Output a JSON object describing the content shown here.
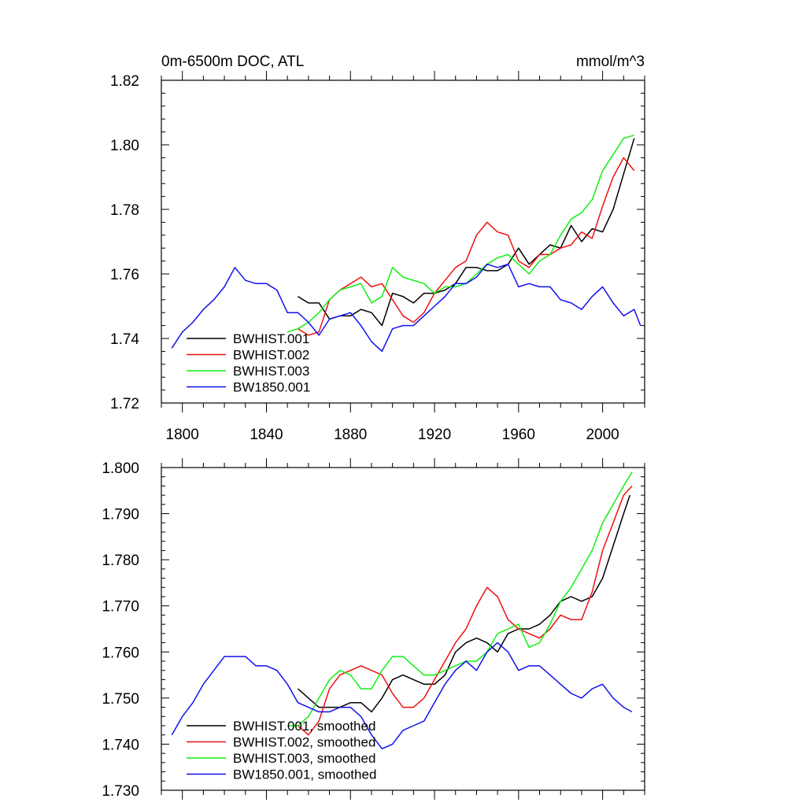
{
  "colors": {
    "BWHIST.001": "#000000",
    "BWHIST.002": "#ee1111",
    "BWHIST.003": "#11ee11",
    "BW1850.001": "#1111ee"
  },
  "chart_data": [
    {
      "type": "line",
      "title": "0m-6500m DOC, ATL",
      "units": "mmol/m^3",
      "xlim": [
        1790,
        2020
      ],
      "ylim": [
        1.72,
        1.82
      ],
      "x_ticks": [
        1800,
        1840,
        1880,
        1920,
        1960,
        2000
      ],
      "y_ticks": [
        1.72,
        1.74,
        1.76,
        1.78,
        1.8,
        1.82
      ],
      "y_tick_labels": [
        "1.72",
        "1.74",
        "1.76",
        "1.78",
        "1.80",
        "1.82"
      ],
      "legend": {
        "placement": "lower-left",
        "entries": [
          "BWHIST.001",
          "BWHIST.002",
          "BWHIST.003",
          "BW1850.001"
        ]
      },
      "series": [
        {
          "name": "BWHIST.001",
          "color_key": "BWHIST.001",
          "x": [
            1855,
            1860,
            1865,
            1870,
            1875,
            1880,
            1885,
            1890,
            1895,
            1900,
            1905,
            1910,
            1915,
            1920,
            1925,
            1930,
            1935,
            1940,
            1945,
            1950,
            1955,
            1960,
            1965,
            1970,
            1975,
            1980,
            1985,
            1990,
            1995,
            2000,
            2005,
            2010,
            2015
          ],
          "y": [
            1.753,
            1.751,
            1.751,
            1.746,
            1.747,
            1.747,
            1.749,
            1.748,
            1.744,
            1.754,
            1.753,
            1.751,
            1.754,
            1.754,
            1.755,
            1.757,
            1.762,
            1.762,
            1.761,
            1.761,
            1.763,
            1.768,
            1.763,
            1.766,
            1.769,
            1.768,
            1.775,
            1.77,
            1.774,
            1.773,
            1.78,
            1.791,
            1.802
          ]
        },
        {
          "name": "BWHIST.002",
          "color_key": "BWHIST.002",
          "x": [
            1855,
            1860,
            1865,
            1870,
            1875,
            1880,
            1885,
            1890,
            1895,
            1900,
            1905,
            1910,
            1915,
            1920,
            1925,
            1930,
            1935,
            1940,
            1945,
            1950,
            1955,
            1960,
            1965,
            1970,
            1975,
            1980,
            1985,
            1990,
            1995,
            2000,
            2005,
            2010,
            2015
          ],
          "y": [
            1.743,
            1.741,
            1.742,
            1.752,
            1.755,
            1.757,
            1.759,
            1.756,
            1.757,
            1.752,
            1.747,
            1.745,
            1.748,
            1.754,
            1.758,
            1.762,
            1.764,
            1.772,
            1.776,
            1.773,
            1.772,
            1.764,
            1.762,
            1.766,
            1.766,
            1.768,
            1.769,
            1.773,
            1.771,
            1.781,
            1.79,
            1.796,
            1.792
          ]
        },
        {
          "name": "BWHIST.003",
          "color_key": "BWHIST.003",
          "x": [
            1850,
            1855,
            1860,
            1865,
            1870,
            1875,
            1880,
            1885,
            1890,
            1895,
            1900,
            1905,
            1910,
            1915,
            1920,
            1925,
            1930,
            1935,
            1940,
            1945,
            1950,
            1955,
            1960,
            1965,
            1970,
            1975,
            1980,
            1985,
            1990,
            1995,
            2000,
            2005,
            2010,
            2015
          ],
          "y": [
            1.742,
            1.743,
            1.745,
            1.748,
            1.752,
            1.755,
            1.756,
            1.757,
            1.751,
            1.753,
            1.762,
            1.759,
            1.758,
            1.757,
            1.754,
            1.756,
            1.756,
            1.757,
            1.76,
            1.763,
            1.765,
            1.766,
            1.763,
            1.76,
            1.764,
            1.766,
            1.772,
            1.777,
            1.779,
            1.783,
            1.792,
            1.797,
            1.802,
            1.803
          ]
        },
        {
          "name": "BW1850.001",
          "color_key": "BW1850.001",
          "x": [
            1795,
            1800,
            1805,
            1810,
            1815,
            1820,
            1825,
            1830,
            1835,
            1840,
            1845,
            1850,
            1855,
            1860,
            1865,
            1870,
            1875,
            1880,
            1885,
            1890,
            1895,
            1900,
            1905,
            1910,
            1915,
            1920,
            1925,
            1930,
            1935,
            1940,
            1945,
            1950,
            1955,
            1960,
            1965,
            1970,
            1975,
            1980,
            1985,
            1990,
            1995,
            2000,
            2005,
            2010,
            2015,
            2018
          ],
          "y": [
            1.737,
            1.742,
            1.745,
            1.749,
            1.752,
            1.756,
            1.762,
            1.758,
            1.757,
            1.757,
            1.755,
            1.748,
            1.748,
            1.745,
            1.741,
            1.746,
            1.747,
            1.748,
            1.744,
            1.739,
            1.736,
            1.743,
            1.744,
            1.744,
            1.747,
            1.75,
            1.753,
            1.757,
            1.757,
            1.759,
            1.763,
            1.762,
            1.763,
            1.756,
            1.757,
            1.756,
            1.756,
            1.752,
            1.751,
            1.749,
            1.753,
            1.756,
            1.751,
            1.747,
            1.749,
            1.744
          ]
        }
      ]
    },
    {
      "type": "line",
      "xlim": [
        1790,
        2020
      ],
      "ylim": [
        1.73,
        1.8
      ],
      "x_ticks": [
        1800,
        1840,
        1880,
        1920,
        1960,
        2000
      ],
      "y_ticks": [
        1.73,
        1.74,
        1.75,
        1.76,
        1.77,
        1.78,
        1.79,
        1.8
      ],
      "y_tick_labels": [
        "1.730",
        "1.740",
        "1.750",
        "1.760",
        "1.770",
        "1.780",
        "1.790",
        "1.800"
      ],
      "legend": {
        "placement": "lower-left",
        "entries": [
          "BWHIST.001, smoothed",
          "BWHIST.002, smoothed",
          "BWHIST.003, smoothed",
          "BW1850.001, smoothed"
        ]
      },
      "series": [
        {
          "name": "BWHIST.001, smoothed",
          "color_key": "BWHIST.001",
          "x": [
            1855,
            1860,
            1865,
            1870,
            1875,
            1880,
            1885,
            1890,
            1895,
            1900,
            1905,
            1910,
            1915,
            1920,
            1925,
            1930,
            1935,
            1940,
            1945,
            1950,
            1955,
            1960,
            1965,
            1970,
            1975,
            1980,
            1985,
            1990,
            1995,
            2000,
            2005,
            2010,
            2013
          ],
          "y": [
            1.752,
            1.75,
            1.748,
            1.748,
            1.748,
            1.749,
            1.749,
            1.747,
            1.75,
            1.754,
            1.755,
            1.754,
            1.753,
            1.753,
            1.755,
            1.76,
            1.762,
            1.763,
            1.762,
            1.76,
            1.764,
            1.765,
            1.765,
            1.766,
            1.768,
            1.771,
            1.772,
            1.771,
            1.772,
            1.776,
            1.783,
            1.79,
            1.794
          ]
        },
        {
          "name": "BWHIST.002, smoothed",
          "color_key": "BWHIST.002",
          "x": [
            1855,
            1860,
            1865,
            1870,
            1875,
            1880,
            1885,
            1890,
            1895,
            1900,
            1905,
            1910,
            1915,
            1920,
            1925,
            1930,
            1935,
            1940,
            1945,
            1950,
            1955,
            1960,
            1965,
            1970,
            1975,
            1980,
            1985,
            1990,
            1995,
            2000,
            2005,
            2010,
            2014
          ],
          "y": [
            1.744,
            1.742,
            1.745,
            1.752,
            1.755,
            1.756,
            1.757,
            1.756,
            1.755,
            1.751,
            1.748,
            1.748,
            1.75,
            1.754,
            1.758,
            1.762,
            1.765,
            1.77,
            1.774,
            1.772,
            1.767,
            1.765,
            1.764,
            1.763,
            1.765,
            1.768,
            1.767,
            1.767,
            1.773,
            1.782,
            1.788,
            1.794,
            1.796
          ]
        },
        {
          "name": "BWHIST.003, smoothed",
          "color_key": "BWHIST.003",
          "x": [
            1850,
            1855,
            1860,
            1865,
            1870,
            1875,
            1880,
            1885,
            1890,
            1895,
            1900,
            1905,
            1910,
            1915,
            1920,
            1925,
            1930,
            1935,
            1940,
            1945,
            1950,
            1955,
            1960,
            1965,
            1970,
            1975,
            1980,
            1985,
            1990,
            1995,
            2000,
            2005,
            2010,
            2014
          ],
          "y": [
            1.744,
            1.744,
            1.746,
            1.75,
            1.754,
            1.756,
            1.755,
            1.752,
            1.752,
            1.756,
            1.759,
            1.759,
            1.757,
            1.755,
            1.755,
            1.756,
            1.757,
            1.758,
            1.758,
            1.76,
            1.764,
            1.765,
            1.766,
            1.761,
            1.762,
            1.766,
            1.771,
            1.774,
            1.778,
            1.782,
            1.788,
            1.792,
            1.796,
            1.799
          ]
        },
        {
          "name": "BW1850.001, smoothed",
          "color_key": "BW1850.001",
          "x": [
            1795,
            1800,
            1805,
            1810,
            1815,
            1820,
            1825,
            1830,
            1835,
            1840,
            1845,
            1850,
            1855,
            1860,
            1865,
            1870,
            1875,
            1880,
            1885,
            1890,
            1895,
            1900,
            1905,
            1910,
            1915,
            1920,
            1925,
            1930,
            1935,
            1940,
            1945,
            1950,
            1955,
            1960,
            1965,
            1970,
            1975,
            1980,
            1985,
            1990,
            1995,
            2000,
            2005,
            2010,
            2014
          ],
          "y": [
            1.742,
            1.746,
            1.749,
            1.753,
            1.756,
            1.759,
            1.759,
            1.759,
            1.757,
            1.757,
            1.756,
            1.753,
            1.749,
            1.748,
            1.747,
            1.747,
            1.748,
            1.748,
            1.746,
            1.742,
            1.739,
            1.74,
            1.743,
            1.744,
            1.745,
            1.749,
            1.753,
            1.756,
            1.758,
            1.756,
            1.76,
            1.762,
            1.76,
            1.756,
            1.757,
            1.757,
            1.755,
            1.753,
            1.751,
            1.75,
            1.752,
            1.753,
            1.75,
            1.748,
            1.747
          ]
        }
      ]
    }
  ]
}
